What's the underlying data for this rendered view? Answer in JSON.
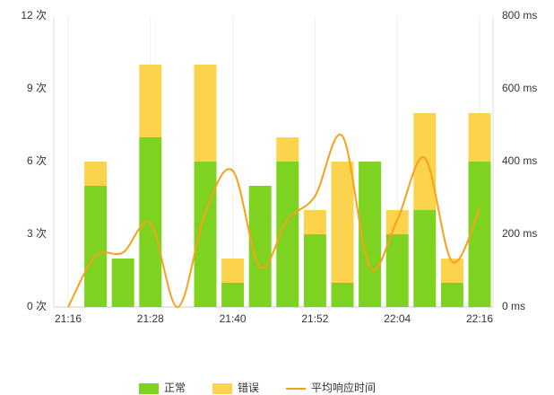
{
  "chart_data": {
    "type": "stacked_bar_line",
    "x": [
      "21:16",
      "21:20",
      "21:24",
      "21:28",
      "21:32",
      "21:36",
      "21:40",
      "21:44",
      "21:48",
      "21:52",
      "21:56",
      "22:00",
      "22:04",
      "22:08",
      "22:12",
      "22:16"
    ],
    "xlim": [
      "21:16",
      "22:16"
    ],
    "xticks": [
      "21:16",
      "21:28",
      "21:40",
      "21:52",
      "22:04",
      "22:16"
    ],
    "ylim": [
      0,
      12
    ],
    "yticks": [
      {
        "value": 0,
        "label": "0 次"
      },
      {
        "value": 3,
        "label": "3 次"
      },
      {
        "value": 6,
        "label": "6 次"
      },
      {
        "value": 9,
        "label": "9 次"
      },
      {
        "value": 12,
        "label": "12 次"
      }
    ],
    "y2lim": [
      0,
      800
    ],
    "y2ticks": [
      {
        "value": 0,
        "label": "0 ms"
      },
      {
        "value": 200,
        "label": "200 ms"
      },
      {
        "value": 400,
        "label": "400 ms"
      },
      {
        "value": 600,
        "label": "600 ms"
      },
      {
        "value": 800,
        "label": "800 ms"
      }
    ],
    "grid": true,
    "legend": "bottom",
    "series": [
      {
        "name": "正常",
        "color": "#7ed321",
        "kind": "bar",
        "values": [
          null,
          5,
          2,
          7,
          null,
          6,
          1,
          5,
          6,
          3,
          1,
          6,
          3,
          4,
          1,
          6
        ]
      },
      {
        "name": "错误",
        "color": "#fcd34d",
        "kind": "bar",
        "values": [
          null,
          1,
          0,
          3,
          null,
          4,
          1,
          0,
          1,
          1,
          5,
          0,
          1,
          4,
          1,
          2
        ]
      },
      {
        "name": "平均响应时间",
        "color": "#f7a11a",
        "kind": "line",
        "axis": "y2",
        "values": [
          0,
          140,
          150,
          230,
          0,
          260,
          375,
          110,
          240,
          305,
          470,
          110,
          240,
          410,
          125,
          270
        ]
      }
    ]
  }
}
